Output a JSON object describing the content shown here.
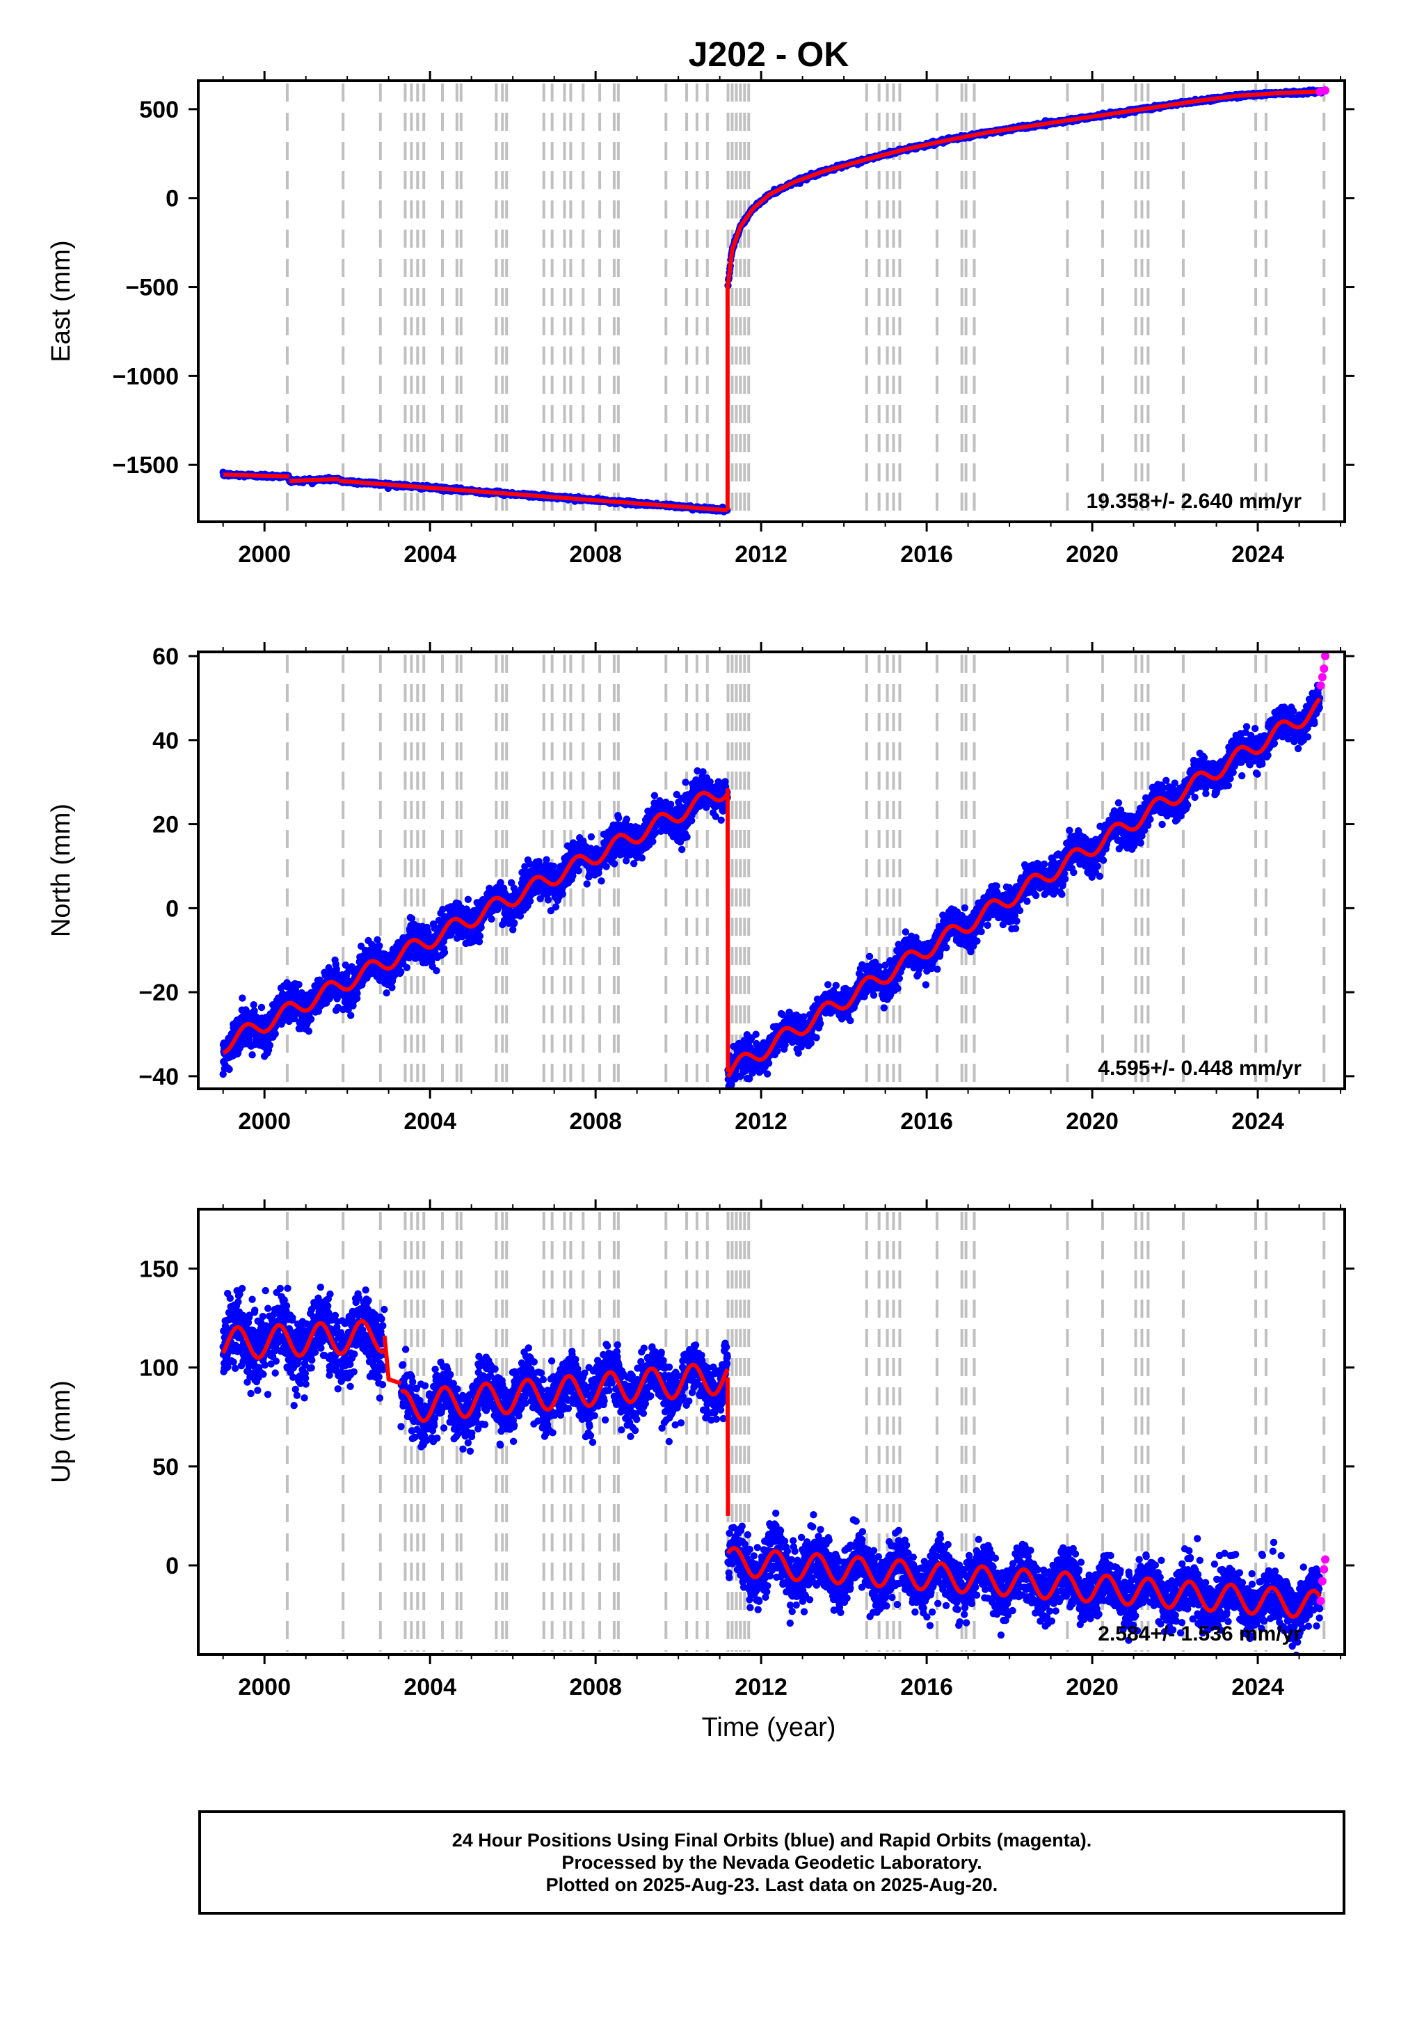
{
  "title": "J202 - OK",
  "xlabel": "Time (year)",
  "colors": {
    "final": "#0000ff",
    "rapid": "#ff00ff",
    "model": "#ff0000",
    "events": "#c0c0c0"
  },
  "footer": {
    "line1": "24 Hour Positions Using Final Orbits (blue) and Rapid Orbits (magenta).",
    "line2": "Processed by the Nevada Geodetic Laboratory.",
    "line3": "Plotted on 2025-Aug-23. Last data on 2025-Aug-20."
  },
  "chart_data": [
    {
      "type": "scatter",
      "panel": "east",
      "ylabel": "East (mm)",
      "xlim": [
        1998.4,
        2026.1
      ],
      "ylim": [
        -1820,
        660
      ],
      "xticks": [
        2000,
        2004,
        2008,
        2012,
        2016,
        2020,
        2024
      ],
      "yticks": [
        500,
        0,
        -500,
        -1000,
        -1500
      ],
      "ytick_labels": [
        "500",
        "0",
        "−500",
        "−1000",
        "−1500"
      ],
      "rate_label": "19.358+/- 2.640 mm/yr",
      "model_segments": [
        {
          "x": [
            1999.0,
            2000.6
          ],
          "y": [
            -1555,
            -1565
          ]
        },
        {
          "x": [
            2000.6,
            2001.8
          ],
          "y": [
            -1590,
            -1580
          ]
        },
        {
          "x": [
            2001.8,
            2011.19
          ],
          "y": [
            -1590,
            -1755
          ]
        },
        {
          "x": [
            2011.19,
            2011.19
          ],
          "y": [
            -1755,
            -490
          ]
        },
        {
          "x": [
            2011.2,
            2011.3,
            2011.5,
            2011.8,
            2012.2,
            2012.8,
            2013.5,
            2014.5,
            2015.5,
            2016.5,
            2017.5,
            2018.5,
            2019.5,
            2020.5,
            2021.5,
            2022.5,
            2023.5,
            2024.5,
            2025.6
          ],
          "y": [
            -490,
            -290,
            -160,
            -60,
            20,
            90,
            150,
            215,
            275,
            325,
            370,
            405,
            440,
            475,
            510,
            545,
            575,
            590,
            600
          ]
        }
      ],
      "rapid_x": [
        2025.5,
        2025.63
      ],
      "rapid_y": [
        598,
        605
      ]
    },
    {
      "type": "scatter",
      "panel": "north",
      "ylabel": "North (mm)",
      "xlim": [
        1998.4,
        2026.1
      ],
      "ylim": [
        -43,
        61
      ],
      "xticks": [
        2000,
        2004,
        2008,
        2012,
        2016,
        2020,
        2024
      ],
      "yticks": [
        60,
        40,
        20,
        0,
        -20,
        -40
      ],
      "ytick_labels": [
        "60",
        "40",
        "20",
        "0",
        "−20",
        "−40"
      ],
      "rate_label": "4.595+/- 0.448 mm/yr",
      "pre_event": {
        "x0": 1999.0,
        "x1": 2011.19,
        "y0": -32.5,
        "y1": 28.5,
        "seasonal": 2.0,
        "noise": 2.2
      },
      "post_event": {
        "x0": 2011.2,
        "x1": 2025.5,
        "y0": -39,
        "y1": 48,
        "seasonal": 2.0,
        "noise": 1.9
      },
      "rapid_x": [
        2025.52,
        2025.56,
        2025.6,
        2025.63
      ],
      "rapid_y": [
        53,
        55,
        57,
        60
      ]
    },
    {
      "type": "scatter",
      "panel": "up",
      "ylabel": "Up (mm)",
      "xlim": [
        1998.4,
        2026.1
      ],
      "ylim": [
        -45,
        180
      ],
      "xticks": [
        2000,
        2004,
        2008,
        2012,
        2016,
        2020,
        2024
      ],
      "yticks": [
        150,
        100,
        50,
        0
      ],
      "ytick_labels": [
        "150",
        "100",
        "50",
        "0"
      ],
      "rate_label": "2.584+/- 1.536 mm/yr",
      "segments": [
        {
          "x0": 1999.0,
          "x1": 2002.9,
          "y0": 112,
          "y1": 116,
          "seasonal": 8,
          "noise": 9
        },
        {
          "x0": 2003.3,
          "x1": 2011.19,
          "y0": 80,
          "y1": 95,
          "seasonal": 8,
          "noise": 7
        },
        {
          "x0": 2011.2,
          "x1": 2025.5,
          "y0": 2,
          "y1": -20,
          "seasonal": 7,
          "noise": 7
        }
      ],
      "rapid_x": [
        2025.52,
        2025.56,
        2025.6,
        2025.63
      ],
      "rapid_y": [
        -18,
        -8,
        -2,
        3
      ]
    }
  ],
  "events": [
    2000.55,
    2001.9,
    2002.8,
    2003.4,
    2003.55,
    2003.7,
    2003.85,
    2004.3,
    2004.65,
    2004.75,
    2005.6,
    2005.75,
    2005.85,
    2006.75,
    2006.95,
    2007.25,
    2007.4,
    2007.7,
    2008.1,
    2008.45,
    2008.55,
    2009.7,
    2010.2,
    2010.45,
    2010.7,
    2011.2,
    2011.3,
    2011.4,
    2011.5,
    2011.6,
    2011.7,
    2014.55,
    2014.85,
    2015.05,
    2015.2,
    2015.35,
    2016.25,
    2016.85,
    2016.95,
    2017.15,
    2019.4,
    2020.25,
    2021.05,
    2021.2,
    2021.35,
    2022.2,
    2023.95,
    2024.2,
    2025.6
  ]
}
